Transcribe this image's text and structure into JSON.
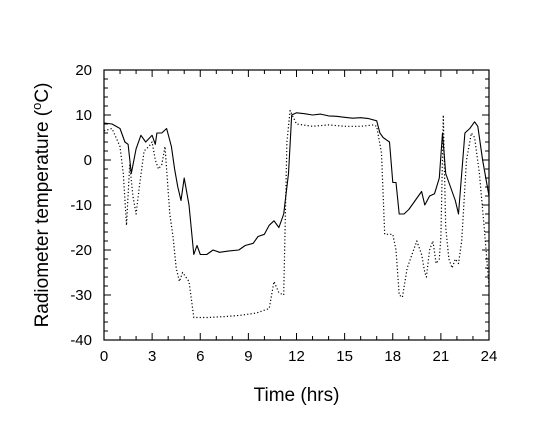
{
  "chart_data": {
    "type": "line",
    "title": "",
    "xlabel": "Time (hrs)",
    "ylabel_main": "Radiometer temperature (",
    "ylabel_sup": "o",
    "ylabel_end": "C)",
    "xlim": [
      0,
      24
    ],
    "ylim": [
      -40,
      20
    ],
    "x_ticks": [
      0,
      3,
      6,
      9,
      12,
      15,
      18,
      21,
      24
    ],
    "x_tick_labels": [
      "0",
      "3",
      "6",
      "9",
      "12",
      "15",
      "18",
      "21",
      "24"
    ],
    "y_ticks": [
      20,
      10,
      0,
      -10,
      -20,
      -30,
      -40
    ],
    "y_tick_labels": [
      "20",
      "10",
      "0",
      "-10",
      "-20",
      "-30",
      "-40"
    ],
    "grid": false,
    "legend": "none",
    "series": [
      {
        "style": "solid",
        "color": "#000000",
        "points": [
          [
            0,
            8.2
          ],
          [
            0.5,
            8.0
          ],
          [
            1.0,
            7.0
          ],
          [
            1.3,
            4.0
          ],
          [
            1.5,
            3.5
          ],
          [
            1.7,
            -3.0
          ],
          [
            2.0,
            2.5
          ],
          [
            2.3,
            5.5
          ],
          [
            2.6,
            4.0
          ],
          [
            3.0,
            5.5
          ],
          [
            3.2,
            3.5
          ],
          [
            3.3,
            6.0
          ],
          [
            3.6,
            6.0
          ],
          [
            3.9,
            7.0
          ],
          [
            4.2,
            3.0
          ],
          [
            4.4,
            -2.0
          ],
          [
            4.6,
            -6.0
          ],
          [
            4.8,
            -9.0
          ],
          [
            5.0,
            -4.0
          ],
          [
            5.3,
            -10.0
          ],
          [
            5.6,
            -21.0
          ],
          [
            5.8,
            -19.0
          ],
          [
            6.0,
            -21.0
          ],
          [
            6.4,
            -21.0
          ],
          [
            6.8,
            -20.0
          ],
          [
            7.2,
            -20.5
          ],
          [
            7.8,
            -20.2
          ],
          [
            8.4,
            -20.0
          ],
          [
            8.8,
            -19.0
          ],
          [
            9.3,
            -18.5
          ],
          [
            9.6,
            -17.0
          ],
          [
            10.0,
            -16.5
          ],
          [
            10.3,
            -14.5
          ],
          [
            10.6,
            -13.5
          ],
          [
            10.9,
            -15.0
          ],
          [
            11.2,
            -12.0
          ],
          [
            11.5,
            -3.0
          ],
          [
            11.7,
            10.0
          ],
          [
            12.0,
            10.5
          ],
          [
            12.5,
            10.3
          ],
          [
            13.0,
            10.0
          ],
          [
            13.5,
            10.2
          ],
          [
            14.0,
            9.8
          ],
          [
            14.5,
            9.7
          ],
          [
            15.0,
            9.5
          ],
          [
            15.5,
            9.3
          ],
          [
            16.0,
            9.4
          ],
          [
            16.5,
            9.2
          ],
          [
            17.0,
            8.7
          ],
          [
            17.2,
            6.0
          ],
          [
            17.4,
            5.0
          ],
          [
            17.6,
            4.5
          ],
          [
            17.8,
            4.0
          ],
          [
            18.0,
            -5.0
          ],
          [
            18.2,
            -5.0
          ],
          [
            18.4,
            -12.0
          ],
          [
            18.7,
            -12.0
          ],
          [
            19.0,
            -11.0
          ],
          [
            19.4,
            -9.0
          ],
          [
            19.8,
            -7.0
          ],
          [
            20.0,
            -10.0
          ],
          [
            20.3,
            -8.0
          ],
          [
            20.6,
            -7.5
          ],
          [
            20.9,
            -4.0
          ],
          [
            21.1,
            6.0
          ],
          [
            21.3,
            -3.0
          ],
          [
            21.6,
            -6.0
          ],
          [
            21.9,
            -9.0
          ],
          [
            22.1,
            -12.0
          ],
          [
            22.5,
            6.0
          ],
          [
            22.8,
            7.0
          ],
          [
            23.1,
            8.5
          ],
          [
            23.3,
            7.5
          ],
          [
            23.6,
            0.0
          ],
          [
            24.0,
            -8.0
          ]
        ]
      },
      {
        "style": "dotted",
        "color": "#000000",
        "points": [
          [
            0,
            6.5
          ],
          [
            0.5,
            7.0
          ],
          [
            1.0,
            3.0
          ],
          [
            1.2,
            -3.0
          ],
          [
            1.4,
            -14.5
          ],
          [
            1.6,
            -1.0
          ],
          [
            1.8,
            -8.0
          ],
          [
            2.0,
            -12.0
          ],
          [
            2.2,
            -6.0
          ],
          [
            2.5,
            2.0
          ],
          [
            2.8,
            3.0
          ],
          [
            3.0,
            4.0
          ],
          [
            3.2,
            0.0
          ],
          [
            3.4,
            -2.0
          ],
          [
            3.6,
            -1.0
          ],
          [
            3.8,
            3.0
          ],
          [
            4.1,
            -12.0
          ],
          [
            4.3,
            -17.0
          ],
          [
            4.5,
            -24.0
          ],
          [
            4.7,
            -27.0
          ],
          [
            4.9,
            -25.0
          ],
          [
            5.1,
            -26.0
          ],
          [
            5.3,
            -27.0
          ],
          [
            5.6,
            -35.0
          ],
          [
            6.5,
            -35.0
          ],
          [
            7.5,
            -34.8
          ],
          [
            8.5,
            -34.5
          ],
          [
            9.5,
            -34.0
          ],
          [
            10.3,
            -33.0
          ],
          [
            10.6,
            -27.0
          ],
          [
            10.9,
            -29.5
          ],
          [
            11.2,
            -30.0
          ],
          [
            11.4,
            4.0
          ],
          [
            11.6,
            11.0
          ],
          [
            12.0,
            8.0
          ],
          [
            13.0,
            7.5
          ],
          [
            14.0,
            7.8
          ],
          [
            15.0,
            7.5
          ],
          [
            16.0,
            7.5
          ],
          [
            16.8,
            7.8
          ],
          [
            17.0,
            7.5
          ],
          [
            17.3,
            1.5
          ],
          [
            17.5,
            -16.5
          ],
          [
            17.8,
            -16.5
          ],
          [
            18.0,
            -16.5
          ],
          [
            18.2,
            -20.0
          ],
          [
            18.4,
            -30.0
          ],
          [
            18.6,
            -30.5
          ],
          [
            18.9,
            -24.0
          ],
          [
            19.2,
            -21.0
          ],
          [
            19.5,
            -18.0
          ],
          [
            19.8,
            -21.0
          ],
          [
            20.0,
            -25.0
          ],
          [
            20.1,
            -26.0
          ],
          [
            20.3,
            -20.0
          ],
          [
            20.5,
            -18.0
          ],
          [
            20.7,
            -23.0
          ],
          [
            20.9,
            -22.0
          ],
          [
            21.0,
            -17.0
          ],
          [
            21.15,
            10.0
          ],
          [
            21.3,
            -15.0
          ],
          [
            21.5,
            -22.0
          ],
          [
            21.7,
            -24.0
          ],
          [
            21.9,
            -22.0
          ],
          [
            22.1,
            -23.0
          ],
          [
            22.3,
            -18.0
          ],
          [
            22.6,
            0.0
          ],
          [
            22.9,
            6.0
          ],
          [
            23.1,
            5.0
          ],
          [
            23.4,
            -3.0
          ],
          [
            23.7,
            -15.0
          ],
          [
            24.0,
            -28.0
          ]
        ]
      }
    ]
  }
}
